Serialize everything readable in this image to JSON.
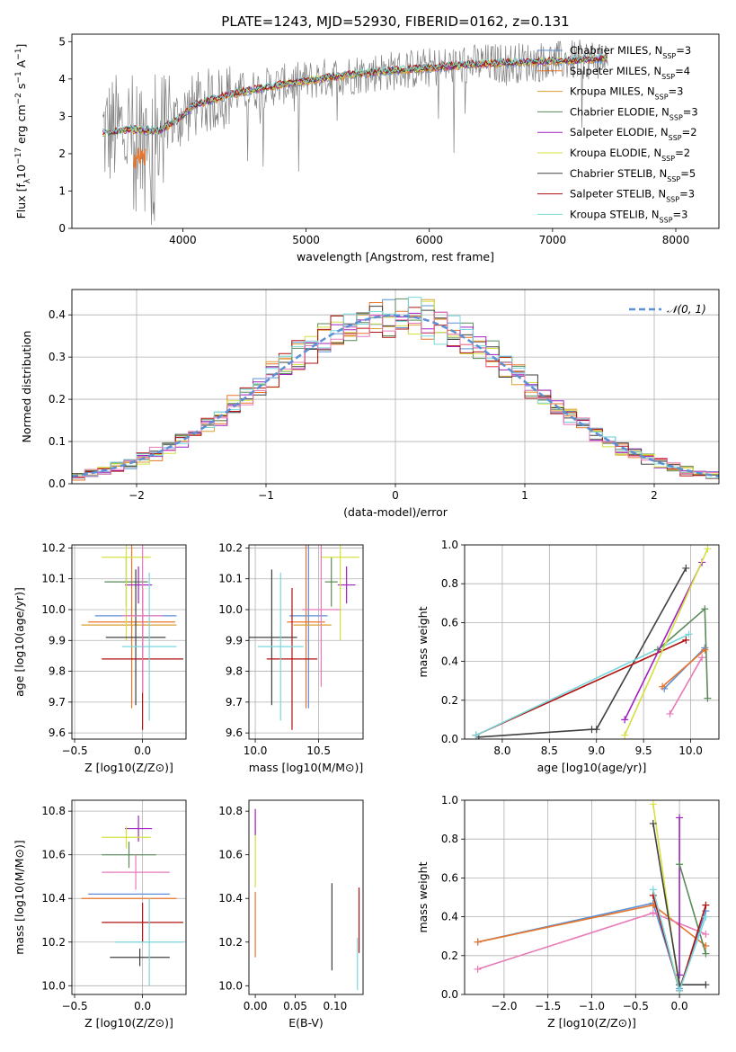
{
  "figure_title": "PLATE=1243, MJD=52930, FIBERID=0162, z=0.131",
  "colors": {
    "chabrier_miles": "#5b8fd6",
    "salpeter_miles": "#e8752a",
    "kroupa_miles": "#d9a030",
    "chabrier_elodie": "#5a8a5a",
    "salpeter_elodie": "#a020c0",
    "kroupa_elodie": "#d4e040",
    "chabrier_stelib": "#404040",
    "salpeter_stelib": "#b01010",
    "kroupa_stelib": "#7ad8dc",
    "pink": "#e87ab8",
    "data": "#808080"
  },
  "chart_data": [
    {
      "id": "spectrum",
      "type": "line",
      "title": "PLATE=1243, MJD=52930, FIBERID=0162, z=0.131",
      "xlabel": "wavelength [Angstrom, rest frame]",
      "ylabel": "Flux [f_λ 10^-17 erg cm^-2 s^-1 A^-1]",
      "xlim": [
        3100,
        8350
      ],
      "ylim": [
        0,
        5.2
      ],
      "xticks": [
        4000,
        5000,
        6000,
        7000,
        8000
      ],
      "yticks": [
        0,
        1,
        2,
        3,
        4,
        5
      ],
      "legend_position": "right",
      "legend": [
        "Chabrier MILES, N_SSP=3",
        "Salpeter MILES, N_SSP=4",
        "Kroupa MILES, N_SSP=3",
        "Chabrier ELODIE, N_SSP=3",
        "Salpeter ELODIE, N_SSP=2",
        "Kroupa ELODIE, N_SSP=2",
        "Chabrier STELIB, N_SSP=5",
        "Salpeter STELIB, N_SSP=3",
        "Kroupa STELIB, N_SSP=3"
      ],
      "model_continuum": {
        "x": [
          3350,
          3600,
          3800,
          3950,
          4100,
          4400,
          4800,
          5200,
          5600,
          6000,
          6400,
          6800,
          7200,
          7450
        ],
        "y": [
          2.55,
          2.65,
          2.6,
          2.9,
          3.3,
          3.6,
          3.85,
          4.05,
          4.2,
          4.3,
          4.4,
          4.45,
          4.5,
          4.55
        ]
      }
    },
    {
      "id": "residuals",
      "type": "line",
      "xlabel": "(data-model)/error",
      "ylabel": "Normed distribution",
      "xlim": [
        -2.5,
        2.5
      ],
      "ylim": [
        0,
        0.46
      ],
      "xticks": [
        -2,
        -1,
        0,
        1,
        2
      ],
      "yticks": [
        0.0,
        0.1,
        0.2,
        0.3,
        0.4
      ],
      "legend": [
        "N(0,1)"
      ],
      "legend_position": "top-right",
      "hist_bin_width": 0.1
    },
    {
      "id": "age_vs_Z",
      "type": "scatter",
      "xlabel": "Z [log10(Z/Z⊙)]",
      "ylabel": "age  [log10(age/yr)]",
      "xlim": [
        -0.52,
        0.32
      ],
      "ylim": [
        9.58,
        10.21
      ],
      "xticks": [
        -0.5,
        0.0
      ],
      "yticks": [
        9.6,
        9.7,
        9.8,
        9.9,
        10.0,
        10.1,
        10.2
      ],
      "points": [
        {
          "c": "chabrier_miles",
          "x": -0.05,
          "xerr": 0.3,
          "y": 9.98,
          "yerr": 0.0
        },
        {
          "c": "salpeter_miles",
          "x": -0.08,
          "xerr": 0.32,
          "y": 9.96,
          "yerr": 0.28
        },
        {
          "c": "kroupa_miles",
          "x": -0.1,
          "xerr": 0.35,
          "y": 9.95,
          "yerr": 0.0
        },
        {
          "c": "chabrier_elodie",
          "x": -0.12,
          "xerr": 0.16,
          "y": 10.09,
          "yerr": 0.08
        },
        {
          "c": "salpeter_elodie",
          "x": -0.03,
          "xerr": 0.1,
          "y": 10.08,
          "yerr": 0.06
        },
        {
          "c": "kroupa_elodie",
          "x": -0.12,
          "xerr": 0.18,
          "y": 10.17,
          "yerr": 0.27
        },
        {
          "c": "chabrier_stelib",
          "x": -0.05,
          "xerr": 0.22,
          "y": 9.91,
          "yerr": 0.22
        },
        {
          "c": "salpeter_stelib",
          "x": 0.0,
          "xerr": 0.3,
          "y": 9.84,
          "yerr": 0.23
        },
        {
          "c": "kroupa_stelib",
          "x": 0.05,
          "xerr": 0.2,
          "y": 9.88,
          "yerr": 0.24
        },
        {
          "c": "pink",
          "x": 0.0,
          "xerr": 0.15,
          "y": 9.98,
          "yerr": 0.25
        }
      ]
    },
    {
      "id": "age_vs_mass",
      "type": "scatter",
      "xlabel": "mass [log10(M/M⊙)]",
      "xlim": [
        9.95,
        10.85
      ],
      "ylim": [
        9.58,
        10.21
      ],
      "xticks": [
        10.0,
        10.5
      ],
      "yticks": [
        9.6,
        9.7,
        9.8,
        9.9,
        10.0,
        10.1,
        10.2
      ],
      "points": [
        {
          "c": "chabrier_miles",
          "x": 10.42,
          "xerr": 0.15,
          "y": 9.98,
          "yerr": 0.3
        },
        {
          "c": "salpeter_miles",
          "x": 10.4,
          "xerr": 0.15,
          "y": 9.96,
          "yerr": 0.28
        },
        {
          "c": "kroupa_miles",
          "x": 10.45,
          "xerr": 0.15,
          "y": 9.95,
          "yerr": 0.0
        },
        {
          "c": "chabrier_elodie",
          "x": 10.6,
          "xerr": 0.05,
          "y": 10.09,
          "yerr": 0.08
        },
        {
          "c": "salpeter_elodie",
          "x": 10.72,
          "xerr": 0.07,
          "y": 10.08,
          "yerr": 0.06
        },
        {
          "c": "kroupa_elodie",
          "x": 10.67,
          "xerr": 0.15,
          "y": 10.17,
          "yerr": 0.27
        },
        {
          "c": "chabrier_stelib",
          "x": 10.13,
          "xerr": 0.2,
          "y": 9.91,
          "yerr": 0.22
        },
        {
          "c": "salpeter_stelib",
          "x": 10.29,
          "xerr": 0.2,
          "y": 9.84,
          "yerr": 0.23
        },
        {
          "c": "kroupa_stelib",
          "x": 10.2,
          "xerr": 0.18,
          "y": 9.88,
          "yerr": 0.24
        },
        {
          "c": "pink",
          "x": 10.52,
          "xerr": 0.15,
          "y": 10.0,
          "yerr": 0.25
        }
      ]
    },
    {
      "id": "mass_weight_vs_age",
      "type": "line",
      "xlabel": "age  [log10(age/yr)]",
      "ylabel": "mass weight",
      "xlim": [
        7.6,
        10.3
      ],
      "ylim": [
        0,
        1.0
      ],
      "xticks": [
        8.0,
        8.5,
        9.0,
        9.5,
        10.0
      ],
      "yticks": [
        0.0,
        0.2,
        0.4,
        0.6,
        0.8,
        1.0
      ],
      "series": [
        {
          "c": "chabrier_stelib",
          "x": [
            7.75,
            8.95,
            9.0,
            9.95
          ],
          "y": [
            0.01,
            0.05,
            0.05,
            0.88
          ]
        },
        {
          "c": "salpeter_stelib",
          "x": [
            7.72,
            9.95
          ],
          "y": [
            0.02,
            0.51
          ]
        },
        {
          "c": "kroupa_stelib",
          "x": [
            7.72,
            9.98
          ],
          "y": [
            0.02,
            0.54
          ]
        },
        {
          "c": "chabrier_elodie",
          "x": [
            9.65,
            10.15,
            10.18
          ],
          "y": [
            0.46,
            0.67,
            0.21
          ]
        },
        {
          "c": "salpeter_elodie",
          "x": [
            9.3,
            10.12
          ],
          "y": [
            0.1,
            0.91
          ]
        },
        {
          "c": "kroupa_elodie",
          "x": [
            9.3,
            10.18
          ],
          "y": [
            0.02,
            0.98
          ]
        },
        {
          "c": "chabrier_miles",
          "x": [
            9.72,
            10.15
          ],
          "y": [
            0.26,
            0.47
          ]
        },
        {
          "c": "salpeter_miles",
          "x": [
            9.7,
            10.15
          ],
          "y": [
            0.27,
            0.46
          ]
        },
        {
          "c": "pink",
          "x": [
            9.78,
            10.12
          ],
          "y": [
            0.13,
            0.42
          ]
        }
      ]
    },
    {
      "id": "mass_vs_Z",
      "type": "scatter",
      "xlabel": "Z [log10(Z/Z⊙)]",
      "ylabel": "mass [log10(M/M⊙)]",
      "xlim": [
        -0.52,
        0.32
      ],
      "ylim": [
        9.96,
        10.85
      ],
      "xticks": [
        -0.5,
        0.0
      ],
      "yticks": [
        10.0,
        10.2,
        10.4,
        10.6,
        10.8
      ],
      "points": [
        {
          "c": "chabrier_miles",
          "x": -0.1,
          "xerr": 0.3,
          "y": 10.42,
          "yerr": 0.0
        },
        {
          "c": "salpeter_miles",
          "x": -0.1,
          "xerr": 0.35,
          "y": 10.4,
          "yerr": 0.0
        },
        {
          "c": "chabrier_elodie",
          "x": -0.1,
          "xerr": 0.2,
          "y": 10.6,
          "yerr": 0.06
        },
        {
          "c": "salpeter_elodie",
          "x": -0.03,
          "xerr": 0.1,
          "y": 10.72,
          "yerr": 0.06
        },
        {
          "c": "kroupa_elodie",
          "x": -0.12,
          "xerr": 0.18,
          "y": 10.68,
          "yerr": 0.05
        },
        {
          "c": "chabrier_stelib",
          "x": -0.02,
          "xerr": 0.22,
          "y": 10.13,
          "yerr": 0.04
        },
        {
          "c": "salpeter_stelib",
          "x": 0.0,
          "xerr": 0.3,
          "y": 10.29,
          "yerr": 0.09
        },
        {
          "c": "kroupa_stelib",
          "x": 0.05,
          "xerr": 0.25,
          "y": 10.2,
          "yerr": 0.2
        },
        {
          "c": "pink",
          "x": -0.05,
          "xerr": 0.25,
          "y": 10.52,
          "yerr": 0.08
        }
      ]
    },
    {
      "id": "mass_vs_EBV",
      "type": "scatter",
      "xlabel": "E(B-V)",
      "xlim": [
        -0.008,
        0.135
      ],
      "ylim": [
        9.96,
        10.85
      ],
      "xticks": [
        0.0,
        0.05,
        0.1
      ],
      "yticks": [
        10.0,
        10.2,
        10.4,
        10.6,
        10.8
      ],
      "points": [
        {
          "c": "kroupa_elodie",
          "x": 0.0,
          "y": 10.6,
          "yerr": 0.15
        },
        {
          "c": "salpeter_miles",
          "x": 0.0,
          "y": 10.28,
          "yerr": 0.15
        },
        {
          "c": "salpeter_elodie",
          "x": 0.0,
          "y": 10.75,
          "yerr": 0.06
        },
        {
          "c": "chabrier_stelib",
          "x": 0.096,
          "y": 10.27,
          "yerr": 0.2
        },
        {
          "c": "salpeter_stelib",
          "x": 0.13,
          "y": 10.3,
          "yerr": 0.15
        },
        {
          "c": "kroupa_stelib",
          "x": 0.128,
          "y": 10.1,
          "yerr": 0.12
        }
      ]
    },
    {
      "id": "mass_weight_vs_Z",
      "type": "line",
      "xlabel": "Z [log10(Z/Z⊙)]",
      "ylabel": "mass weight",
      "xlim": [
        -2.45,
        0.45
      ],
      "ylim": [
        0,
        1.0
      ],
      "xticks": [
        -2.0,
        -1.5,
        -1.0,
        -0.5,
        0.0
      ],
      "yticks": [
        0.0,
        0.2,
        0.4,
        0.6,
        0.8,
        1.0
      ],
      "series": [
        {
          "c": "chabrier_miles",
          "x": [
            -2.3,
            -0.3,
            0.0,
            0.3
          ],
          "y": [
            0.27,
            0.47,
            0.03,
            0.43
          ]
        },
        {
          "c": "salpeter_miles",
          "x": [
            -2.3,
            -0.3,
            0.3
          ],
          "y": [
            0.27,
            0.46,
            0.25
          ]
        },
        {
          "c": "pink",
          "x": [
            -2.3,
            -0.3,
            0.3
          ],
          "y": [
            0.13,
            0.42,
            0.31
          ]
        },
        {
          "c": "kroupa_elodie",
          "x": [
            -0.3,
            0.0
          ],
          "y": [
            0.98,
            0.02
          ]
        },
        {
          "c": "salpeter_elodie",
          "x": [
            0.0,
            0.0
          ],
          "y": [
            0.91,
            0.1
          ]
        },
        {
          "c": "chabrier_elodie",
          "x": [
            0.0,
            0.3
          ],
          "y": [
            0.67,
            0.21
          ]
        },
        {
          "c": "chabrier_stelib",
          "x": [
            -0.3,
            0.0,
            0.3
          ],
          "y": [
            0.88,
            0.05,
            0.05
          ]
        },
        {
          "c": "salpeter_stelib",
          "x": [
            -0.3,
            0.0,
            0.3
          ],
          "y": [
            0.51,
            0.02,
            0.46
          ]
        },
        {
          "c": "kroupa_stelib",
          "x": [
            -0.3,
            0.0,
            0.3
          ],
          "y": [
            0.54,
            0.02,
            0.4
          ]
        }
      ]
    }
  ]
}
